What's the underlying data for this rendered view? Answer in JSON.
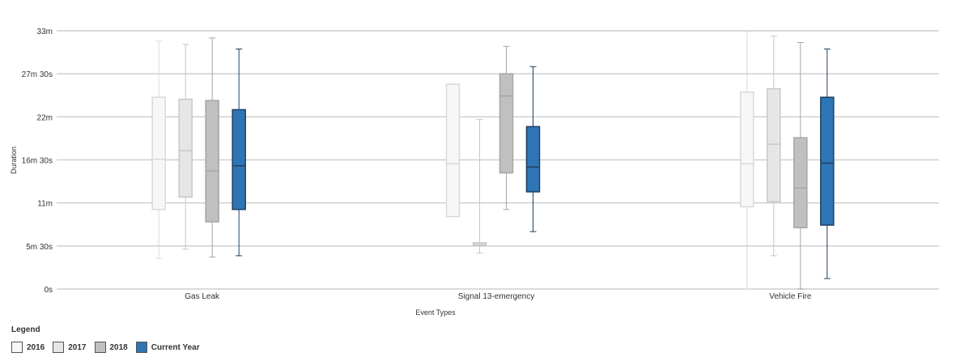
{
  "chart_data": {
    "type": "boxplot",
    "xlabel": "Event Types",
    "ylabel": "Duration",
    "categories": [
      "Gas Leak",
      "Signal 13-emergency",
      "Vehicle Fire"
    ],
    "y_unit": "seconds",
    "ylim": [
      0,
      1980
    ],
    "y_ticks": [
      {
        "value": 0,
        "label": "0s"
      },
      {
        "value": 330,
        "label": "5m 30s"
      },
      {
        "value": 660,
        "label": "11m"
      },
      {
        "value": 990,
        "label": "16m 30s"
      },
      {
        "value": 1320,
        "label": "22m"
      },
      {
        "value": 1650,
        "label": "27m 30s"
      },
      {
        "value": 1980,
        "label": "33m"
      }
    ],
    "grid": true,
    "series": [
      {
        "name": "2016",
        "fill": "#f7f7f7",
        "stroke": "#d9d9d9",
        "boxes": [
          {
            "min": 235,
            "q1": 610,
            "median": 995,
            "q3": 1470,
            "max": 1900
          },
          {
            "min": null,
            "q1": 555,
            "median": 960,
            "q3": 1570,
            "max": null
          },
          {
            "min": 0,
            "q1": 630,
            "median": 960,
            "q3": 1510,
            "max": 1975
          }
        ]
      },
      {
        "name": "2017",
        "fill": "#e6e6e6",
        "stroke": "#c8c8c8",
        "boxes": [
          {
            "min": 305,
            "q1": 705,
            "median": 1060,
            "q3": 1455,
            "max": 1875
          },
          {
            "min": 275,
            "q1": 330,
            "median": 340,
            "q3": 355,
            "max": 1300
          },
          {
            "min": 255,
            "q1": 670,
            "median": 1110,
            "q3": 1535,
            "max": 1940
          }
        ]
      },
      {
        "name": "2018",
        "fill": "#c0c0c0",
        "stroke": "#a6a6a6",
        "boxes": [
          {
            "min": 245,
            "q1": 515,
            "median": 905,
            "q3": 1445,
            "max": 1925
          },
          {
            "min": 610,
            "q1": 890,
            "median": 1480,
            "q3": 1650,
            "max": 1860
          },
          {
            "min": 0,
            "q1": 470,
            "median": 775,
            "q3": 1160,
            "max": 1890
          }
        ]
      },
      {
        "name": "Current Year",
        "fill": "#2e75b6",
        "stroke": "#1f3f5f",
        "boxes": [
          {
            "min": 255,
            "q1": 610,
            "median": 945,
            "q3": 1375,
            "max": 1840
          },
          {
            "min": 440,
            "q1": 745,
            "median": 935,
            "q3": 1245,
            "max": 1705
          },
          {
            "min": 80,
            "q1": 490,
            "median": 965,
            "q3": 1470,
            "max": 1840
          }
        ]
      }
    ]
  },
  "legend": {
    "title": "Legend",
    "items": [
      {
        "label": "2016",
        "color": "#f7f7f7"
      },
      {
        "label": "2017",
        "color": "#e6e6e6"
      },
      {
        "label": "2018",
        "color": "#c0c0c0"
      },
      {
        "label": "Current Year",
        "color": "#2e75b6"
      }
    ]
  }
}
